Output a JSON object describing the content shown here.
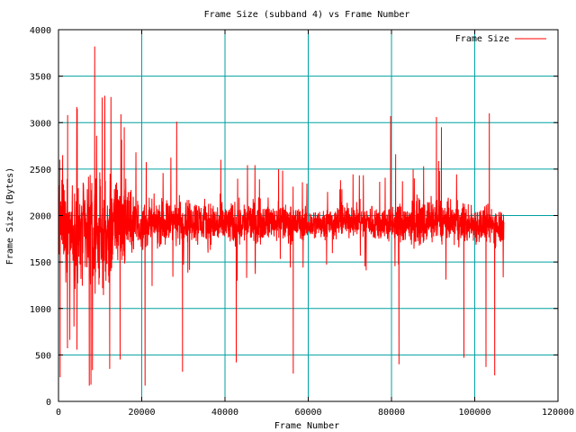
{
  "chart_data": {
    "type": "line",
    "title": "Frame Size (subband 4) vs Frame Number",
    "xlabel": "Frame Number",
    "ylabel": "Frame Size (Bytes)",
    "xlim": [
      0,
      120000
    ],
    "ylim": [
      0,
      4000
    ],
    "x_ticks": [
      0,
      20000,
      40000,
      60000,
      80000,
      100000,
      120000
    ],
    "y_ticks": [
      0,
      500,
      1000,
      1500,
      2000,
      2500,
      3000,
      3500,
      4000
    ],
    "x_tick_labels": [
      "0",
      "20000",
      "40000",
      "60000",
      "80000",
      "100000",
      "120000"
    ],
    "y_tick_labels": [
      "0",
      "500",
      "1000",
      "1500",
      "2000",
      "2500",
      "3000",
      "3500",
      "4000"
    ],
    "grid": true,
    "legend": {
      "position": "top-right",
      "entries": [
        "Frame Size"
      ]
    },
    "colors": {
      "series": "#ff0000",
      "grid": "#00a0a0",
      "axes": "#000000"
    },
    "series": [
      {
        "name": "Frame Size",
        "x_start": 0,
        "x_end": 107000,
        "band": {
          "x": [
            0,
            5000,
            10000,
            15000,
            20000,
            30000,
            40000,
            50000,
            60000,
            70000,
            80000,
            90000,
            100000,
            107000
          ],
          "center": [
            1950,
            1800,
            1750,
            1950,
            1900,
            1950,
            1900,
            1950,
            1900,
            1950,
            1900,
            1950,
            1900,
            1900
          ],
          "spread": [
            650,
            800,
            800,
            650,
            350,
            350,
            350,
            300,
            250,
            250,
            300,
            350,
            300,
            300
          ]
        },
        "peaks": [
          {
            "x": 300,
            "y": 2600
          },
          {
            "x": 1000,
            "y": 2650
          },
          {
            "x": 2200,
            "y": 3080
          },
          {
            "x": 4500,
            "y": 3150
          },
          {
            "x": 8700,
            "y": 3820
          },
          {
            "x": 10500,
            "y": 3270
          },
          {
            "x": 15000,
            "y": 3090
          },
          {
            "x": 15800,
            "y": 2950
          },
          {
            "x": 28400,
            "y": 3010
          },
          {
            "x": 39000,
            "y": 2600
          },
          {
            "x": 79800,
            "y": 3070
          },
          {
            "x": 81000,
            "y": 2660
          },
          {
            "x": 90800,
            "y": 3060
          },
          {
            "x": 92000,
            "y": 2950
          },
          {
            "x": 103500,
            "y": 3100
          }
        ],
        "troughs": [
          {
            "x": 400,
            "y": 260
          },
          {
            "x": 7400,
            "y": 170
          },
          {
            "x": 7800,
            "y": 180
          },
          {
            "x": 12300,
            "y": 350
          },
          {
            "x": 14800,
            "y": 450
          },
          {
            "x": 20800,
            "y": 170
          },
          {
            "x": 29800,
            "y": 320
          },
          {
            "x": 42700,
            "y": 420
          },
          {
            "x": 56400,
            "y": 300
          },
          {
            "x": 81800,
            "y": 400
          },
          {
            "x": 97400,
            "y": 470
          },
          {
            "x": 102700,
            "y": 370
          },
          {
            "x": 104800,
            "y": 280
          }
        ]
      }
    ]
  }
}
